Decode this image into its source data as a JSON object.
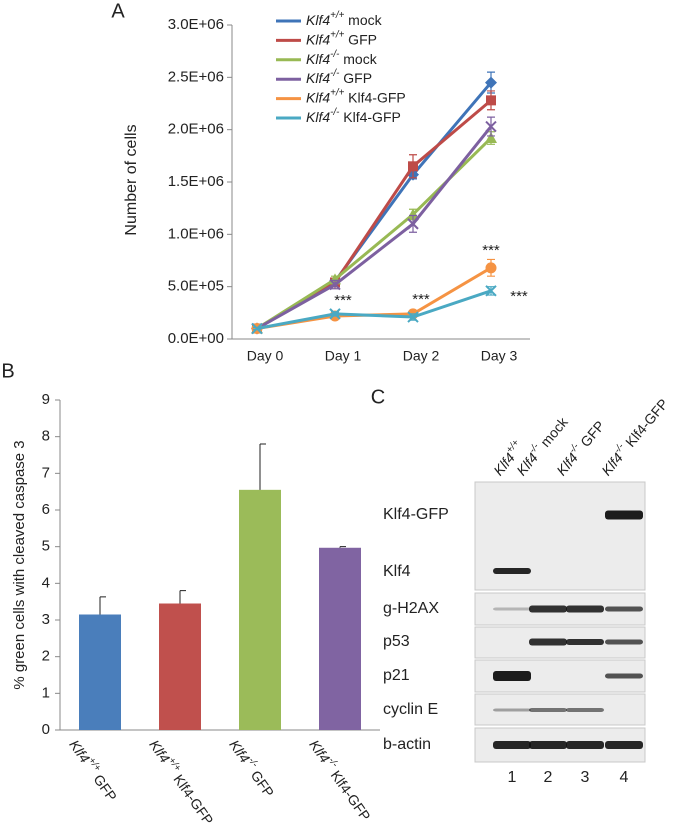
{
  "chart_data": [
    {
      "type": "line",
      "panel": "A",
      "y_label": "Number of cells",
      "categories": [
        "Day 0",
        "Day 1",
        "Day 2",
        "Day 3"
      ],
      "ylim": [
        0,
        3000000
      ],
      "yticks": [
        {
          "value": 0,
          "label": "0.0E+00"
        },
        {
          "value": 500000,
          "label": "5.0E+05"
        },
        {
          "value": 1000000,
          "label": "1.0E+06"
        },
        {
          "value": 1500000,
          "label": "1.5E+06"
        },
        {
          "value": 2000000,
          "label": "2.0E+06"
        },
        {
          "value": 2500000,
          "label": "2.5E+06"
        },
        {
          "value": 3000000,
          "label": "3.0E+06"
        }
      ],
      "series": [
        {
          "name": "Klf4+/+ mock",
          "color": "#3f74b8",
          "marker": "diamond",
          "values": [
            100000,
            550000,
            1570000,
            2450000
          ],
          "errors": [
            10000,
            30000,
            40000,
            100000
          ]
        },
        {
          "name": "Klf4+/+ GFP",
          "color": "#be4b48",
          "marker": "square",
          "values": [
            100000,
            540000,
            1650000,
            2280000
          ],
          "errors": [
            10000,
            30000,
            110000,
            90000
          ]
        },
        {
          "name": "Klf4-/- mock",
          "color": "#98b954",
          "marker": "triangle",
          "values": [
            100000,
            570000,
            1190000,
            1920000
          ],
          "errors": [
            10000,
            30000,
            50000,
            60000
          ]
        },
        {
          "name": "Klf4-/- GFP",
          "color": "#7d60a0",
          "marker": "x",
          "values": [
            100000,
            520000,
            1100000,
            2030000
          ],
          "errors": [
            10000,
            40000,
            80000,
            90000
          ]
        },
        {
          "name": "Klf4+/+ Klf4-GFP",
          "color": "#f59343",
          "marker": "circle",
          "values": [
            100000,
            220000,
            240000,
            680000
          ],
          "errors": [
            10000,
            20000,
            20000,
            80000
          ]
        },
        {
          "name": "Klf4-/- Klf4-GFP",
          "color": "#4aa9c3",
          "marker": "x",
          "values": [
            100000,
            240000,
            210000,
            460000
          ],
          "errors": [
            10000,
            20000,
            30000,
            40000
          ]
        }
      ],
      "annotations": [
        "***",
        "***",
        "***",
        "***"
      ]
    },
    {
      "type": "bar",
      "panel": "B",
      "y_label": "% green cells with cleaved caspase 3",
      "categories": [
        "Klf4+/+ GFP",
        "Klf4+/+ Klf4-GFP",
        "Klf4-/- GFP",
        "Klf4-/- Klf4-GFP"
      ],
      "values": [
        3.15,
        3.45,
        6.55,
        4.97
      ],
      "errors": [
        0.48,
        0.35,
        1.25,
        0.03
      ],
      "colors": [
        "#4a7ebb",
        "#c0504d",
        "#9bbb59",
        "#8064a2"
      ],
      "ylim": [
        0,
        9
      ],
      "yticks": [
        0,
        1,
        2,
        3,
        4,
        5,
        6,
        7,
        8,
        9
      ]
    }
  ],
  "blot": {
    "panel": "C",
    "lanes": [
      "Klf4+/+",
      "Klf4-/- mock",
      "Klf4-/- GFP",
      "Klf4-/- Klf4-GFP"
    ],
    "rows": [
      "Klf4-GFP",
      "Klf4",
      "g-H2AX",
      "p53",
      "p21",
      "cyclin E",
      "b-actin"
    ],
    "lane_numbers": [
      1,
      2,
      3,
      4
    ]
  }
}
